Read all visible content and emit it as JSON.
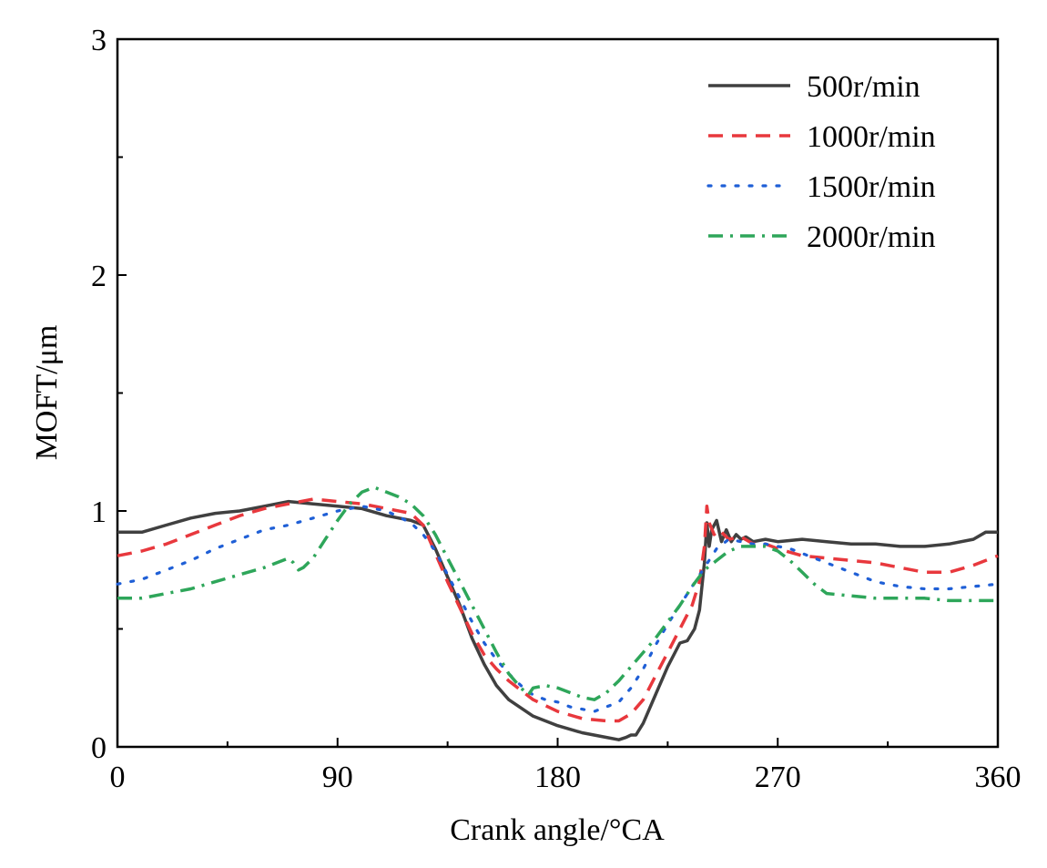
{
  "chart_data": {
    "type": "line",
    "title": "",
    "xlabel": "Crank angle/°CA",
    "ylabel": "MOFT/μm",
    "xlim": [
      0,
      360
    ],
    "ylim": [
      0,
      3
    ],
    "x_ticks": [
      0,
      90,
      180,
      270,
      360
    ],
    "x_tick_labels": [
      "0",
      "90",
      "180",
      "270",
      "360"
    ],
    "y_ticks": [
      0,
      1,
      2,
      3
    ],
    "y_tick_labels": [
      "0",
      "1",
      "2",
      "3"
    ],
    "grid": false,
    "legend_position": "top-right",
    "series": [
      {
        "name": "500r/min",
        "color": "#404040",
        "style": "solid",
        "points": [
          [
            0,
            0.91
          ],
          [
            10,
            0.91
          ],
          [
            20,
            0.94
          ],
          [
            30,
            0.97
          ],
          [
            40,
            0.99
          ],
          [
            50,
            1.0
          ],
          [
            60,
            1.02
          ],
          [
            70,
            1.04
          ],
          [
            80,
            1.03
          ],
          [
            90,
            1.02
          ],
          [
            100,
            1.01
          ],
          [
            110,
            0.98
          ],
          [
            120,
            0.96
          ],
          [
            125,
            0.94
          ],
          [
            130,
            0.84
          ],
          [
            135,
            0.72
          ],
          [
            140,
            0.6
          ],
          [
            145,
            0.46
          ],
          [
            150,
            0.35
          ],
          [
            155,
            0.26
          ],
          [
            160,
            0.2
          ],
          [
            170,
            0.13
          ],
          [
            180,
            0.09
          ],
          [
            190,
            0.06
          ],
          [
            200,
            0.04
          ],
          [
            205,
            0.03
          ],
          [
            208,
            0.04
          ],
          [
            210,
            0.05
          ],
          [
            212,
            0.05
          ],
          [
            215,
            0.1
          ],
          [
            220,
            0.22
          ],
          [
            225,
            0.34
          ],
          [
            230,
            0.44
          ],
          [
            233,
            0.45
          ],
          [
            236,
            0.5
          ],
          [
            238,
            0.58
          ],
          [
            240,
            0.78
          ],
          [
            241,
            0.95
          ],
          [
            242,
            0.85
          ],
          [
            243,
            0.92
          ],
          [
            245,
            0.96
          ],
          [
            247,
            0.87
          ],
          [
            249,
            0.92
          ],
          [
            251,
            0.87
          ],
          [
            253,
            0.9
          ],
          [
            255,
            0.88
          ],
          [
            257,
            0.89
          ],
          [
            260,
            0.87
          ],
          [
            265,
            0.88
          ],
          [
            270,
            0.87
          ],
          [
            280,
            0.88
          ],
          [
            290,
            0.87
          ],
          [
            300,
            0.86
          ],
          [
            310,
            0.86
          ],
          [
            320,
            0.85
          ],
          [
            330,
            0.85
          ],
          [
            340,
            0.86
          ],
          [
            350,
            0.88
          ],
          [
            355,
            0.91
          ],
          [
            360,
            0.91
          ]
        ]
      },
      {
        "name": "1000r/min",
        "color": "#e8383d",
        "style": "dashed",
        "points": [
          [
            0,
            0.81
          ],
          [
            10,
            0.83
          ],
          [
            20,
            0.86
          ],
          [
            30,
            0.9
          ],
          [
            40,
            0.94
          ],
          [
            50,
            0.98
          ],
          [
            60,
            1.01
          ],
          [
            70,
            1.03
          ],
          [
            80,
            1.05
          ],
          [
            90,
            1.04
          ],
          [
            100,
            1.03
          ],
          [
            110,
            1.01
          ],
          [
            120,
            0.99
          ],
          [
            125,
            0.94
          ],
          [
            130,
            0.82
          ],
          [
            135,
            0.7
          ],
          [
            140,
            0.59
          ],
          [
            145,
            0.48
          ],
          [
            150,
            0.39
          ],
          [
            155,
            0.33
          ],
          [
            160,
            0.28
          ],
          [
            170,
            0.2
          ],
          [
            180,
            0.15
          ],
          [
            190,
            0.12
          ],
          [
            200,
            0.11
          ],
          [
            205,
            0.11
          ],
          [
            210,
            0.14
          ],
          [
            215,
            0.2
          ],
          [
            220,
            0.3
          ],
          [
            225,
            0.4
          ],
          [
            230,
            0.5
          ],
          [
            235,
            0.6
          ],
          [
            238,
            0.7
          ],
          [
            240,
            0.85
          ],
          [
            241,
            1.02
          ],
          [
            242,
            0.95
          ],
          [
            244,
            0.9
          ],
          [
            246,
            0.92
          ],
          [
            250,
            0.88
          ],
          [
            255,
            0.89
          ],
          [
            260,
            0.86
          ],
          [
            265,
            0.86
          ],
          [
            270,
            0.84
          ],
          [
            280,
            0.81
          ],
          [
            290,
            0.8
          ],
          [
            300,
            0.79
          ],
          [
            310,
            0.78
          ],
          [
            320,
            0.76
          ],
          [
            330,
            0.74
          ],
          [
            340,
            0.74
          ],
          [
            350,
            0.77
          ],
          [
            360,
            0.81
          ]
        ]
      },
      {
        "name": "1500r/min",
        "color": "#1f5fd6",
        "style": "dotted",
        "points": [
          [
            0,
            0.69
          ],
          [
            10,
            0.71
          ],
          [
            20,
            0.75
          ],
          [
            30,
            0.79
          ],
          [
            40,
            0.84
          ],
          [
            50,
            0.88
          ],
          [
            60,
            0.92
          ],
          [
            70,
            0.94
          ],
          [
            80,
            0.97
          ],
          [
            90,
            1.0
          ],
          [
            95,
            1.01
          ],
          [
            100,
            1.02
          ],
          [
            110,
            1.0
          ],
          [
            120,
            0.95
          ],
          [
            125,
            0.9
          ],
          [
            130,
            0.83
          ],
          [
            135,
            0.73
          ],
          [
            140,
            0.63
          ],
          [
            145,
            0.53
          ],
          [
            150,
            0.44
          ],
          [
            155,
            0.37
          ],
          [
            160,
            0.31
          ],
          [
            165,
            0.26
          ],
          [
            170,
            0.22
          ],
          [
            175,
            0.2
          ],
          [
            180,
            0.19
          ],
          [
            185,
            0.17
          ],
          [
            190,
            0.16
          ],
          [
            195,
            0.15
          ],
          [
            200,
            0.17
          ],
          [
            205,
            0.19
          ],
          [
            210,
            0.25
          ],
          [
            215,
            0.33
          ],
          [
            220,
            0.43
          ],
          [
            225,
            0.52
          ],
          [
            230,
            0.6
          ],
          [
            235,
            0.68
          ],
          [
            240,
            0.76
          ],
          [
            245,
            0.84
          ],
          [
            250,
            0.88
          ],
          [
            255,
            0.87
          ],
          [
            260,
            0.86
          ],
          [
            265,
            0.86
          ],
          [
            270,
            0.85
          ],
          [
            275,
            0.84
          ],
          [
            280,
            0.82
          ],
          [
            290,
            0.78
          ],
          [
            300,
            0.74
          ],
          [
            310,
            0.7
          ],
          [
            320,
            0.68
          ],
          [
            330,
            0.67
          ],
          [
            340,
            0.67
          ],
          [
            350,
            0.68
          ],
          [
            360,
            0.69
          ]
        ]
      },
      {
        "name": "2000r/min",
        "color": "#2ea65a",
        "style": "dashdot",
        "points": [
          [
            0,
            0.63
          ],
          [
            10,
            0.63
          ],
          [
            20,
            0.65
          ],
          [
            30,
            0.67
          ],
          [
            40,
            0.7
          ],
          [
            50,
            0.73
          ],
          [
            60,
            0.76
          ],
          [
            65,
            0.78
          ],
          [
            70,
            0.8
          ],
          [
            72,
            0.78
          ],
          [
            74,
            0.75
          ],
          [
            76,
            0.76
          ],
          [
            80,
            0.8
          ],
          [
            85,
            0.88
          ],
          [
            90,
            0.96
          ],
          [
            95,
            1.03
          ],
          [
            100,
            1.08
          ],
          [
            105,
            1.1
          ],
          [
            110,
            1.08
          ],
          [
            115,
            1.06
          ],
          [
            120,
            1.03
          ],
          [
            125,
            0.98
          ],
          [
            130,
            0.9
          ],
          [
            135,
            0.8
          ],
          [
            140,
            0.7
          ],
          [
            145,
            0.6
          ],
          [
            150,
            0.5
          ],
          [
            155,
            0.4
          ],
          [
            160,
            0.31
          ],
          [
            165,
            0.25
          ],
          [
            168,
            0.22
          ],
          [
            170,
            0.25
          ],
          [
            175,
            0.26
          ],
          [
            180,
            0.25
          ],
          [
            185,
            0.23
          ],
          [
            190,
            0.21
          ],
          [
            195,
            0.2
          ],
          [
            200,
            0.23
          ],
          [
            205,
            0.28
          ],
          [
            210,
            0.34
          ],
          [
            215,
            0.4
          ],
          [
            220,
            0.46
          ],
          [
            225,
            0.53
          ],
          [
            230,
            0.6
          ],
          [
            235,
            0.68
          ],
          [
            240,
            0.75
          ],
          [
            245,
            0.79
          ],
          [
            250,
            0.83
          ],
          [
            255,
            0.85
          ],
          [
            260,
            0.85
          ],
          [
            265,
            0.85
          ],
          [
            270,
            0.83
          ],
          [
            275,
            0.79
          ],
          [
            280,
            0.74
          ],
          [
            285,
            0.69
          ],
          [
            290,
            0.65
          ],
          [
            300,
            0.64
          ],
          [
            310,
            0.63
          ],
          [
            320,
            0.63
          ],
          [
            330,
            0.63
          ],
          [
            340,
            0.62
          ],
          [
            350,
            0.62
          ],
          [
            360,
            0.62
          ]
        ]
      }
    ]
  }
}
